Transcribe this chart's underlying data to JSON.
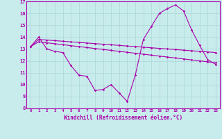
{
  "xlabel": "Windchill (Refroidissement éolien,°C)",
  "background_color": "#c8ecec",
  "grid_color": "#b0dada",
  "line_color": "#aa00aa",
  "x": [
    0,
    1,
    2,
    3,
    4,
    5,
    6,
    7,
    8,
    9,
    10,
    11,
    12,
    13,
    14,
    15,
    16,
    17,
    18,
    19,
    20,
    21,
    22,
    23
  ],
  "line1": [
    13.2,
    14.0,
    13.0,
    12.8,
    12.7,
    11.6,
    10.8,
    10.7,
    9.5,
    9.6,
    10.0,
    9.3,
    8.6,
    10.8,
    13.8,
    14.9,
    16.0,
    16.4,
    16.7,
    16.2,
    14.6,
    13.3,
    12.1,
    11.7
  ],
  "line2": [
    13.2,
    13.8,
    13.75,
    13.7,
    13.65,
    13.6,
    13.55,
    13.5,
    13.45,
    13.4,
    13.35,
    13.3,
    13.25,
    13.2,
    13.15,
    13.1,
    13.05,
    13.0,
    12.95,
    12.9,
    12.85,
    12.8,
    12.75,
    12.7
  ],
  "line3": [
    13.2,
    13.6,
    13.52,
    13.44,
    13.36,
    13.28,
    13.2,
    13.12,
    13.04,
    12.96,
    12.88,
    12.8,
    12.72,
    12.64,
    12.56,
    12.48,
    12.4,
    12.32,
    12.24,
    12.16,
    12.08,
    12.0,
    11.92,
    11.84
  ],
  "ylim": [
    8,
    17
  ],
  "xlim": [
    -0.5,
    23.5
  ],
  "yticks": [
    8,
    9,
    10,
    11,
    12,
    13,
    14,
    15,
    16,
    17
  ]
}
